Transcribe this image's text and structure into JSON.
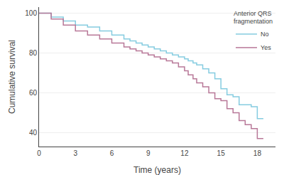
{
  "chart_data": {
    "type": "step",
    "xlabel": "Time (years)",
    "ylabel": "Cumulative survival",
    "xlim": [
      0,
      19.5
    ],
    "ylim": [
      33,
      103
    ],
    "xticks": [
      0,
      3,
      6,
      9,
      12,
      15,
      18
    ],
    "yticks": [
      40,
      60,
      80,
      100
    ],
    "grid": "y",
    "legend": "upper right",
    "legend_title": "Anterior QRS\nfragmentation",
    "x": [
      0,
      1,
      2,
      3,
      4,
      5,
      6,
      7,
      7.5,
      8,
      8.5,
      9,
      9.5,
      10,
      10.5,
      11,
      11.5,
      12,
      12.3,
      12.7,
      13,
      13.5,
      14,
      14.5,
      15,
      15.5,
      16,
      16.5,
      17,
      17.5,
      18,
      18.5
    ],
    "series": [
      {
        "name": "No",
        "color": "#85cce0",
        "values": [
          100,
          98,
          96,
          94,
          93,
          91,
          89,
          87,
          86,
          85,
          84,
          83,
          82,
          81,
          80,
          79,
          78,
          77,
          76,
          75,
          74,
          72,
          70,
          67,
          62,
          59,
          58,
          54,
          54,
          53,
          47,
          47
        ]
      },
      {
        "name": "Yes",
        "color": "#b87898",
        "values": [
          100,
          97,
          94,
          91,
          89,
          87,
          85,
          83,
          82,
          81,
          80,
          79,
          78,
          77,
          76,
          75,
          73,
          71,
          69,
          67,
          65,
          63,
          60,
          57,
          56,
          52,
          50,
          46,
          44,
          42,
          37,
          37
        ]
      }
    ]
  }
}
